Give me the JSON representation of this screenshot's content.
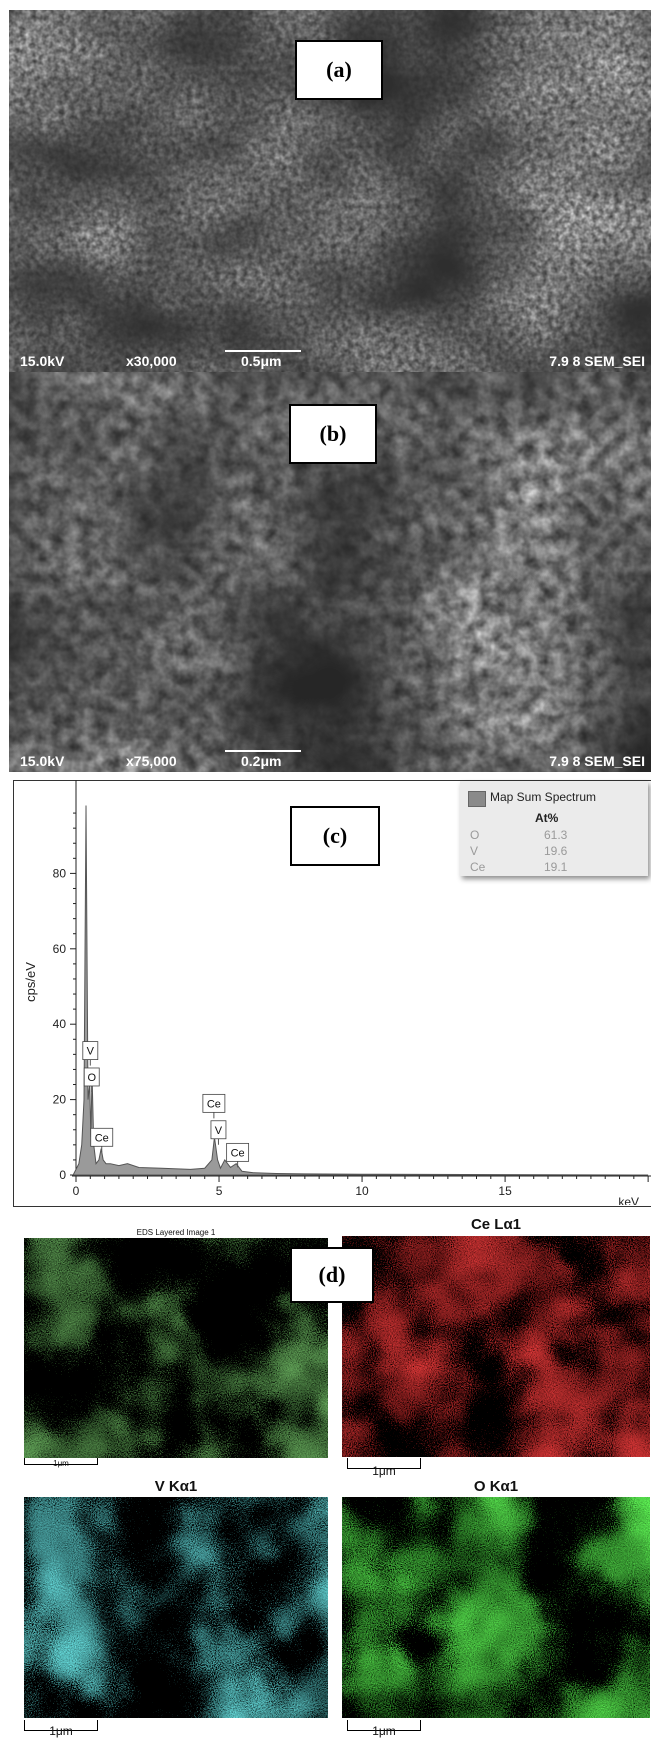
{
  "panels": {
    "a": {
      "label": "(a)",
      "voltage": "15.0kV",
      "magnification": "x30,000",
      "scale": "0.5μm",
      "info": "7.9 8 SEM_SEI"
    },
    "b": {
      "label": "(b)",
      "voltage": "15.0kV",
      "magnification": "x75,000",
      "scale": "0.2μm",
      "info": "7.9 8 SEM_SEI"
    },
    "c": {
      "label": "(c)"
    },
    "d": {
      "label": "(d)"
    }
  },
  "chart_data": {
    "type": "line",
    "xlabel": "keV",
    "ylabel": "cps/eV",
    "xlim": [
      -0.2,
      20
    ],
    "ylim": [
      0,
      100
    ],
    "x_ticks": [
      0,
      5,
      10,
      15
    ],
    "y_ticks": [
      0,
      20,
      40,
      60,
      80
    ],
    "series": [
      {
        "name": "Map Sum Spectrum",
        "x": [
          -0.1,
          0.1,
          0.2,
          0.28,
          0.35,
          0.42,
          0.48,
          0.52,
          0.56,
          0.62,
          0.7,
          0.8,
          0.88,
          0.95,
          1.05,
          1.2,
          1.5,
          1.8,
          2.2,
          3.0,
          4.0,
          4.5,
          4.75,
          4.84,
          4.95,
          5.05,
          5.2,
          5.4,
          5.6,
          5.8,
          6.2,
          7.0,
          8.0,
          10.0,
          15.0,
          20.0
        ],
        "y": [
          0,
          3,
          8,
          20,
          98,
          20,
          24,
          10,
          27,
          8,
          3,
          4,
          7,
          4,
          3,
          3,
          2.5,
          3,
          2,
          1.8,
          1.5,
          1.8,
          4,
          10,
          4,
          1.8,
          4,
          2,
          3,
          1,
          0.6,
          0.4,
          0.3,
          0.2,
          0.1,
          0
        ]
      }
    ],
    "peak_labels": [
      {
        "text": "V",
        "x": 0.5,
        "y": 33
      },
      {
        "text": "O",
        "x": 0.55,
        "y": 26
      },
      {
        "text": "Ce",
        "x": 0.9,
        "y": 10
      },
      {
        "text": "Ce",
        "x": 4.82,
        "y": 19
      },
      {
        "text": "V",
        "x": 4.98,
        "y": 12
      },
      {
        "text": "Ce",
        "x": 5.65,
        "y": 6
      }
    ],
    "legend": {
      "title": "Map Sum Spectrum",
      "header": "At%",
      "rows": [
        {
          "element": "O",
          "value": "61.3"
        },
        {
          "element": "V",
          "value": "19.6"
        },
        {
          "element": "Ce",
          "value": "19.1"
        }
      ]
    }
  },
  "maps": {
    "layered": {
      "title": "EDS Layered Image 1",
      "scale": "1μm",
      "color": "#5aa83c"
    },
    "ce": {
      "title": "Ce Lα1",
      "scale": "1μm",
      "color": "#e01515"
    },
    "v": {
      "title": "V Kα1",
      "scale": "1μm",
      "color": "#2fd3d3"
    },
    "o": {
      "title": "O Kα1",
      "scale": "1μm",
      "color": "#29c42a"
    }
  }
}
